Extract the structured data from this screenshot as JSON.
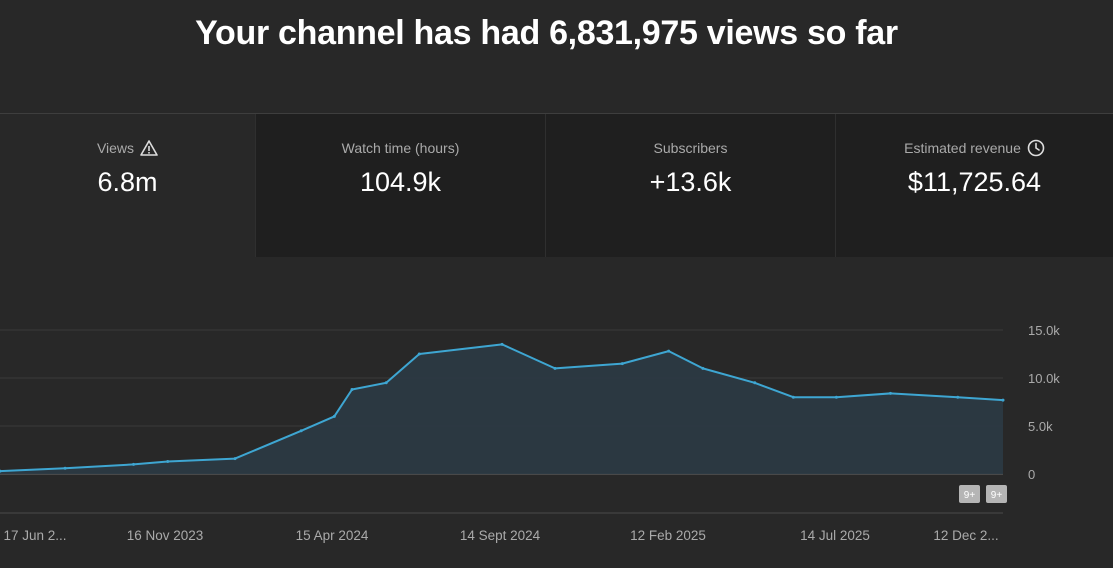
{
  "headline": "Your channel has had 6,831,975 views so far",
  "metrics": [
    {
      "label": "Views",
      "value": "6.8m",
      "icon": "warning-icon"
    },
    {
      "label": "Watch time (hours)",
      "value": "104.9k"
    },
    {
      "label": "Subscribers",
      "value": "+13.6k"
    },
    {
      "label": "Estimated revenue",
      "value": "$11,725.64",
      "icon": "clock-icon"
    }
  ],
  "colors": {
    "line": "#3ea6d2",
    "fill": "#2b3a44",
    "grid": "#3a3a3a",
    "text": "#aaaaaa"
  },
  "chart_data": {
    "type": "area",
    "x": [
      "17 Jun 2023",
      "15 Aug 2023",
      "16 Oct 2023",
      "16 Nov 2023",
      "16 Jan 2024",
      "16 Mar 2024",
      "15 Apr 2024",
      "1 May 2024",
      "1 Jun 2024",
      "1 Jul 2024",
      "14 Sept 2024",
      "1 Nov 2024",
      "1 Jan 2025",
      "12 Feb 2025",
      "15 Mar 2025",
      "1 May 2025",
      "5 Jun 2025",
      "14 Jul 2025",
      "1 Sep 2025",
      "1 Nov 2025",
      "12 Dec 2025"
    ],
    "values": [
      300,
      600,
      1000,
      1300,
      1600,
      4500,
      6000,
      8800,
      9500,
      12500,
      13500,
      11000,
      11500,
      12800,
      11000,
      9500,
      8000,
      8000,
      8400,
      8000,
      7700
    ],
    "ylim": [
      0,
      15000
    ],
    "yticks": [
      "0",
      "5.0k",
      "10.0k",
      "15.0k"
    ],
    "xtick_labels": [
      "17 Jun 2...",
      "16 Nov 2023",
      "15 Apr 2024",
      "14 Sept 2024",
      "12 Feb 2025",
      "14 Jul 2025",
      "12 Dec 2..."
    ],
    "annotations": [
      "9+",
      "9+"
    ],
    "grid": true
  }
}
